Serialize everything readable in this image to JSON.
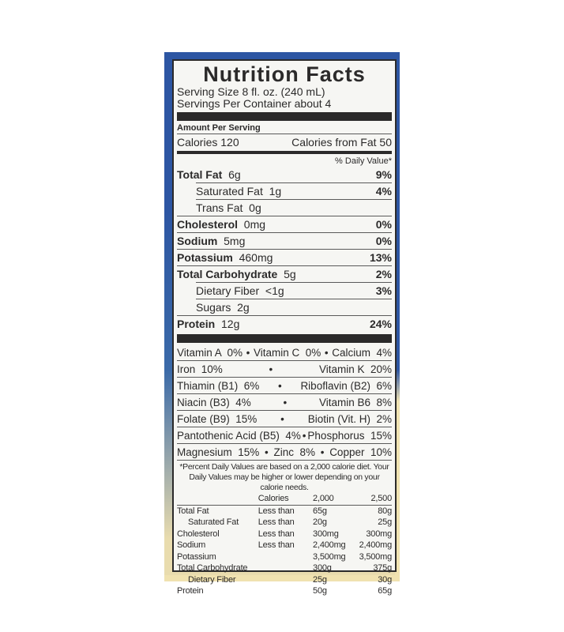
{
  "title": "Nutrition Facts",
  "serving_size": "Serving Size  8 fl. oz.  (240 mL)",
  "servings_per_container": "Servings Per Container about 4",
  "amount_per_serving": "Amount Per Serving",
  "calories": "Calories  120",
  "calories_from_fat": "Calories from Fat  50",
  "daily_value_header": "% Daily Value*",
  "nutrients": [
    {
      "name": "Total Fat",
      "amount": "6g",
      "dv": "9%",
      "bold": true,
      "indent": false
    },
    {
      "name": "Saturated Fat",
      "amount": "1g",
      "dv": "4%",
      "bold": false,
      "indent": true
    },
    {
      "name": "Trans Fat",
      "amount": "0g",
      "dv": "",
      "bold": false,
      "indent": true
    },
    {
      "name": "Cholesterol",
      "amount": "0mg",
      "dv": "0%",
      "bold": true,
      "indent": false
    },
    {
      "name": "Sodium",
      "amount": "5mg",
      "dv": "0%",
      "bold": true,
      "indent": false
    },
    {
      "name": "Potassium",
      "amount": "460mg",
      "dv": "13%",
      "bold": true,
      "indent": false
    },
    {
      "name": "Total Carbohydrate",
      "amount": "5g",
      "dv": "2%",
      "bold": true,
      "indent": false
    },
    {
      "name": "Dietary Fiber",
      "amount": "<1g",
      "dv": "3%",
      "bold": false,
      "indent": true
    },
    {
      "name": "Sugars",
      "amount": "2g",
      "dv": "",
      "bold": false,
      "indent": true
    },
    {
      "name": "Protein",
      "amount": "12g",
      "dv": "24%",
      "bold": true,
      "indent": false
    }
  ],
  "vitamin_rows": [
    [
      "Vitamin A  0%",
      "•",
      "Vitamin C  0%",
      "•",
      "Calcium  4%"
    ],
    [
      "Iron  10%",
      "•",
      "Vitamin K  20%"
    ],
    [
      "Thiamin (B1)  6%",
      "•",
      "Riboflavin (B2)  6%"
    ],
    [
      "Niacin (B3)  4%",
      "•",
      "Vitamin B6  8%"
    ],
    [
      "Folate (B9)  15%",
      "•",
      "Biotin (Vit. H)  2%"
    ],
    [
      "Pantothenic Acid (B5)  4%",
      "•",
      "Phosphorus  15%"
    ],
    [
      "Magnesium  15%",
      "•",
      "Zinc  8%",
      "•",
      "Copper  10%"
    ]
  ],
  "footnote": "*Percent Daily Values are based on a 2,000 calorie diet. Your Daily Values may be higher or lower depending on your calorie needs.",
  "dv_table": {
    "header": [
      "",
      "Calories",
      "2,000",
      "2,500"
    ],
    "rows": [
      [
        "Total Fat",
        "Less than",
        "65g",
        "80g"
      ],
      [
        "Saturated Fat",
        "Less than",
        "20g",
        "25g"
      ],
      [
        "Cholesterol",
        "Less than",
        "300mg",
        "300mg"
      ],
      [
        "Sodium",
        "Less than",
        "2,400mg",
        "2,400mg"
      ],
      [
        "Potassium",
        "",
        "3,500mg",
        "3,500mg"
      ],
      [
        "Total Carbohydrate",
        "",
        "300g",
        "375g"
      ],
      [
        "Dietary Fiber",
        "",
        "25g",
        "30g"
      ],
      [
        "Protein",
        "",
        "50g",
        "65g"
      ]
    ]
  }
}
